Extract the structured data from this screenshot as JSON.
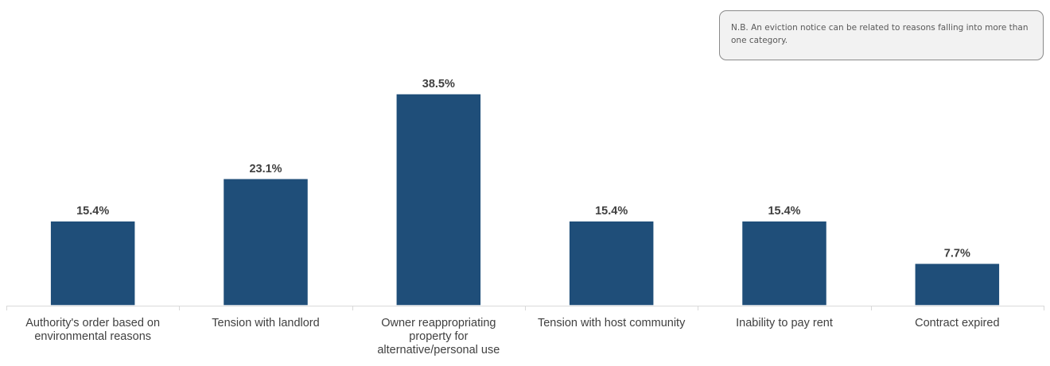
{
  "note": "N.B. An eviction notice can be related to reasons falling into more than one category.",
  "chart_data": {
    "type": "bar",
    "categories": [
      "Authority's order based on environmental reasons",
      "Tension with landlord",
      "Owner reappropriating property for alternative/personal use",
      "Tension with host community",
      "Inability to pay rent",
      "Contract expired"
    ],
    "category_lines": [
      [
        "Authority's order based on",
        "environmental reasons"
      ],
      [
        "Tension with landlord"
      ],
      [
        "Owner reappropriating",
        "property for",
        "alternative/personal use"
      ],
      [
        "Tension with host community"
      ],
      [
        "Inability to pay rent"
      ],
      [
        "Contract expired"
      ]
    ],
    "values": [
      15.4,
      23.1,
      38.5,
      15.4,
      15.4,
      7.7
    ],
    "value_labels": [
      "15.4%",
      "23.1%",
      "38.5%",
      "15.4%",
      "15.4%",
      "7.7%"
    ],
    "ylim": [
      0,
      38.5
    ],
    "title": "",
    "xlabel": "",
    "ylabel": "",
    "bar_color": "#1f4e79",
    "grid": false,
    "legend": false
  }
}
